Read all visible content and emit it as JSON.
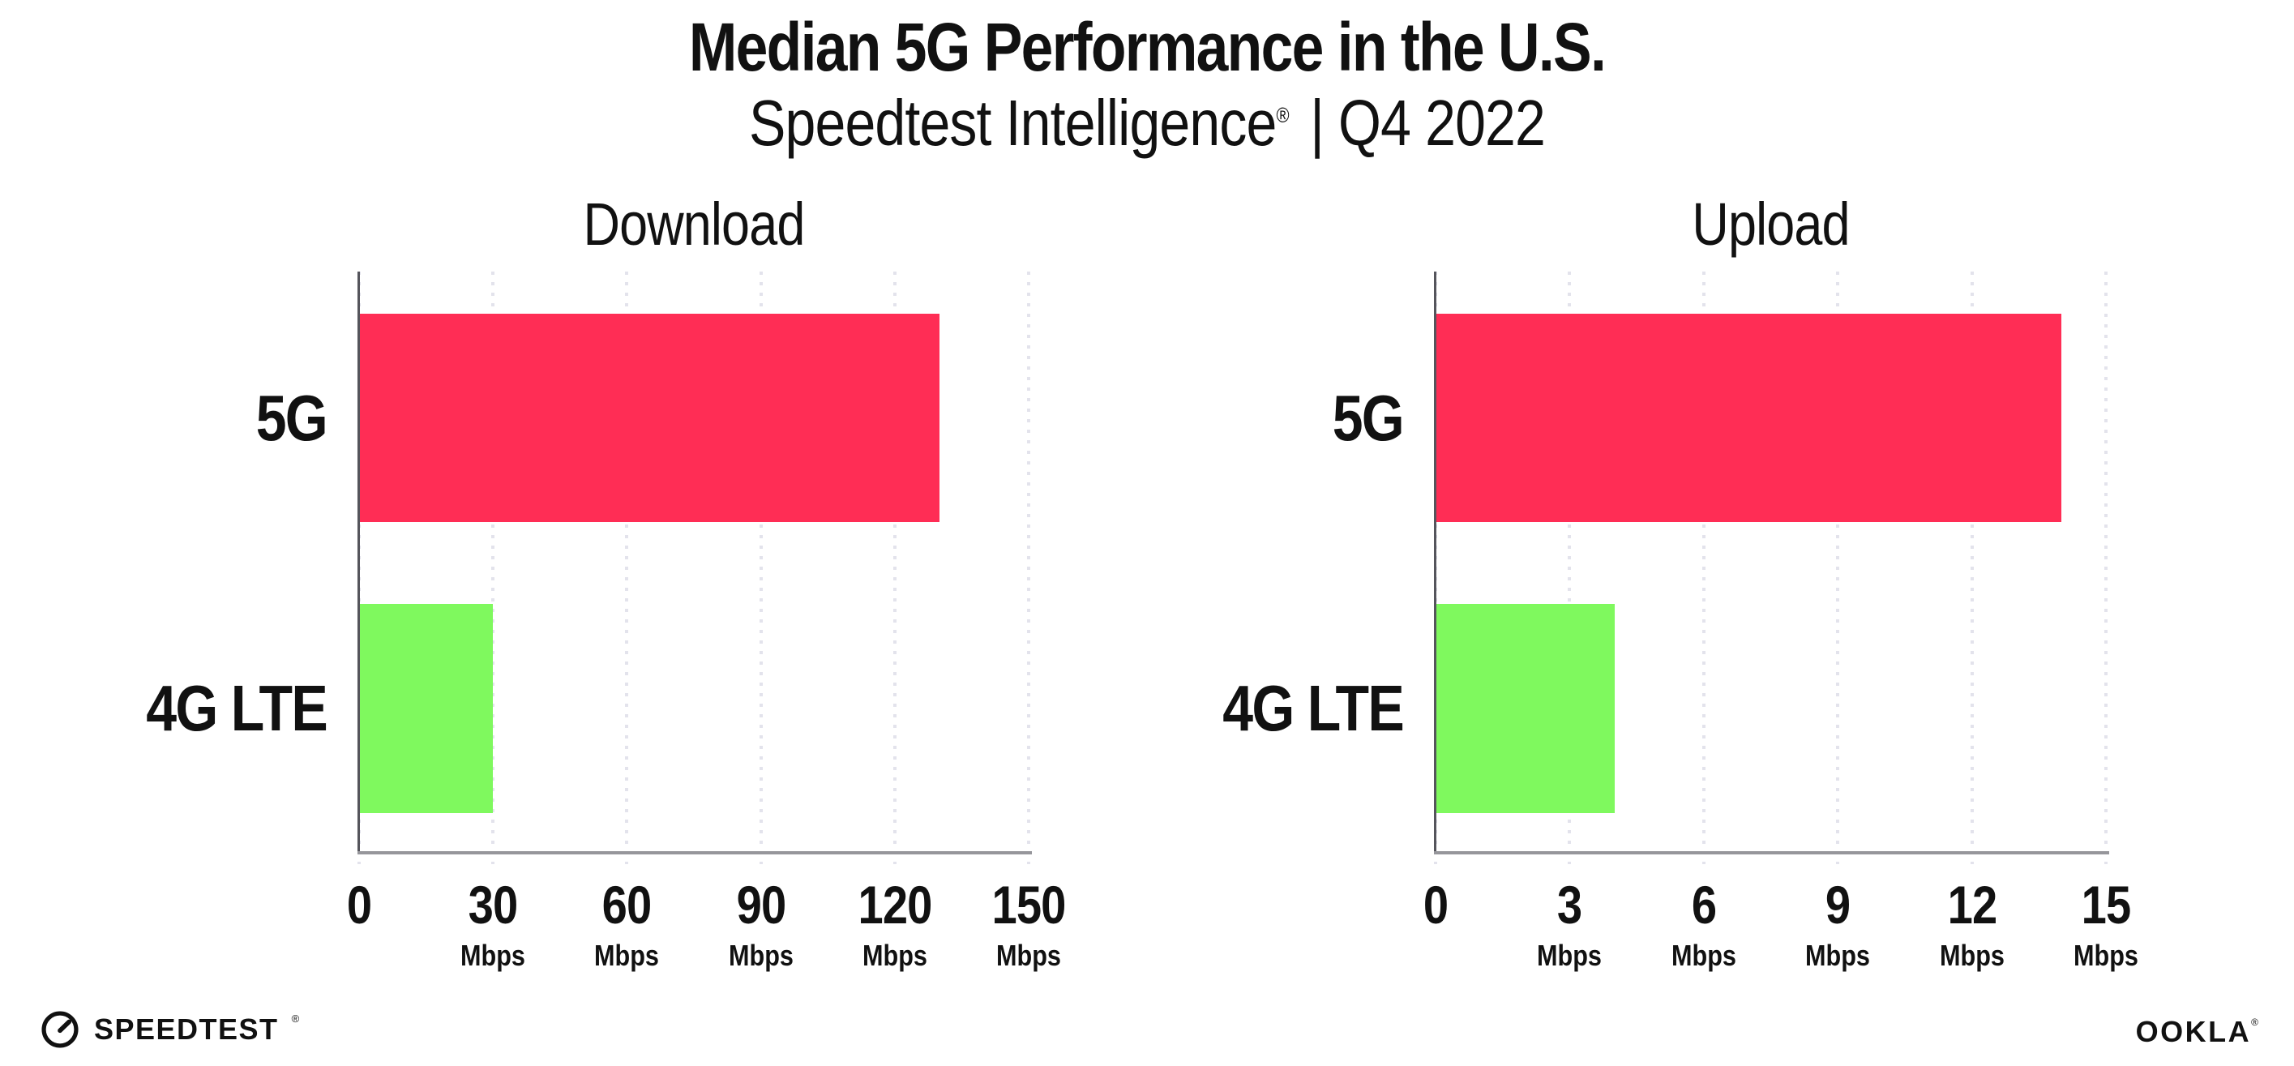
{
  "header": {
    "title": "Median 5G Performance in the U.S.",
    "subtitle_product": "Speedtest Intelligence",
    "subtitle_reg": "®",
    "subtitle_rest": "| Q4 2022"
  },
  "colors": {
    "bar_5g": "#FF2D55",
    "bar_4g_lte": "#7FF95E",
    "grid": "#E3E3EC",
    "axis_vertical": "#55555C",
    "axis_horizontal": "#96969B",
    "text": "#111111",
    "background": "#FFFFFF"
  },
  "chart_data": [
    {
      "type": "bar",
      "orientation": "horizontal",
      "title": "Download",
      "categories": [
        "5G",
        "4G LTE"
      ],
      "values": [
        130,
        30
      ],
      "unit": "Mbps",
      "xlim": [
        0,
        150
      ],
      "xticks": [
        0,
        30,
        60,
        90,
        120,
        150
      ],
      "tick_unit_label": "Mbps",
      "grid": "dotted-vertical",
      "legend": "none",
      "bar_colors": [
        "#FF2D55",
        "#7FF95E"
      ]
    },
    {
      "type": "bar",
      "orientation": "horizontal",
      "title": "Upload",
      "categories": [
        "5G",
        "4G LTE"
      ],
      "values": [
        14,
        4
      ],
      "unit": "Mbps",
      "xlim": [
        0,
        15
      ],
      "xticks": [
        0,
        3,
        6,
        9,
        12,
        15
      ],
      "tick_unit_label": "Mbps",
      "grid": "dotted-vertical",
      "legend": "none",
      "bar_colors": [
        "#FF2D55",
        "#7FF95E"
      ]
    }
  ],
  "footer": {
    "speedtest_label": "SPEEDTEST",
    "speedtest_reg": "®",
    "ookla_label": "OOKLA",
    "ookla_reg": "®"
  }
}
